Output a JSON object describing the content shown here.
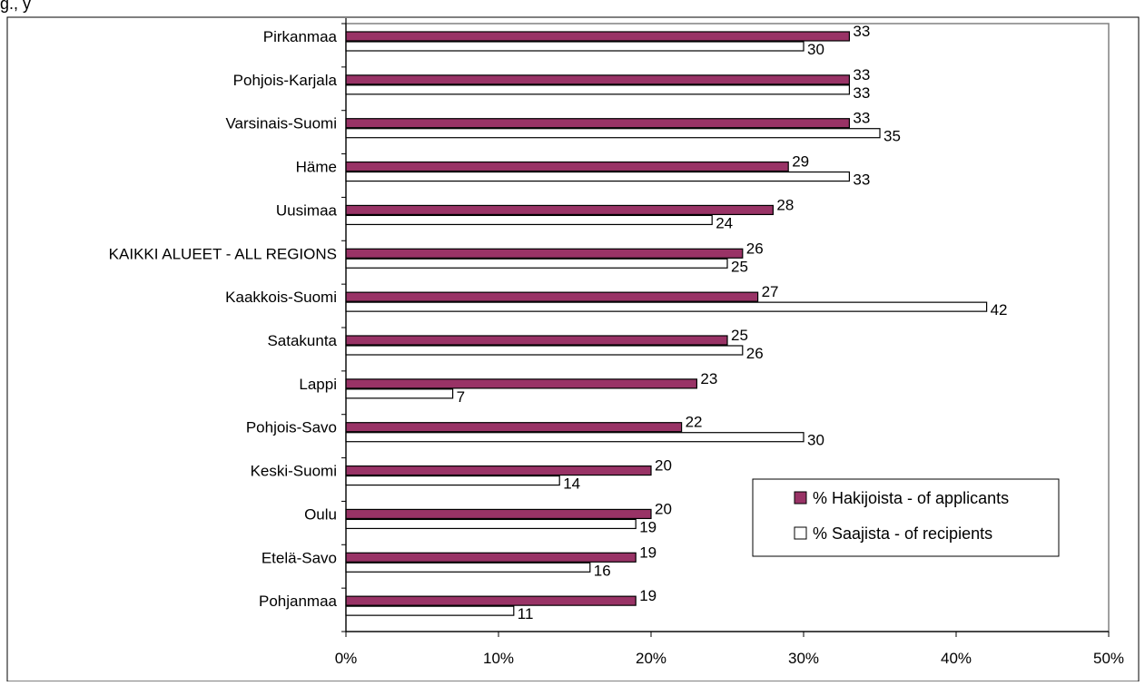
{
  "top_fragment": "g., y",
  "chart_data": {
    "type": "bar",
    "orientation": "horizontal",
    "categories": [
      "Pirkanmaa",
      "Pohjois-Karjala",
      "Varsinais-Suomi",
      "Häme",
      "Uusimaa",
      "KAIKKI ALUEET - ALL REGIONS",
      "Kaakkois-Suomi",
      "Satakunta",
      "Lappi",
      "Pohjois-Savo",
      "Keski-Suomi",
      "Oulu",
      "Etelä-Savo",
      "Pohjanmaa"
    ],
    "series": [
      {
        "name": "% Hakijoista - of applicants",
        "color": "#993366",
        "values": [
          33,
          33,
          33,
          29,
          28,
          26,
          27,
          25,
          23,
          22,
          20,
          20,
          19,
          19
        ]
      },
      {
        "name": "% Saajista - of recipients",
        "color": "#ffffff",
        "values": [
          30,
          33,
          35,
          33,
          24,
          25,
          42,
          26,
          7,
          30,
          14,
          19,
          16,
          11
        ]
      }
    ],
    "xlim": [
      0,
      50
    ],
    "xticks": [
      "0%",
      "10%",
      "20%",
      "30%",
      "40%",
      "50%"
    ],
    "grid": false,
    "legend_position": "bottom-right"
  }
}
